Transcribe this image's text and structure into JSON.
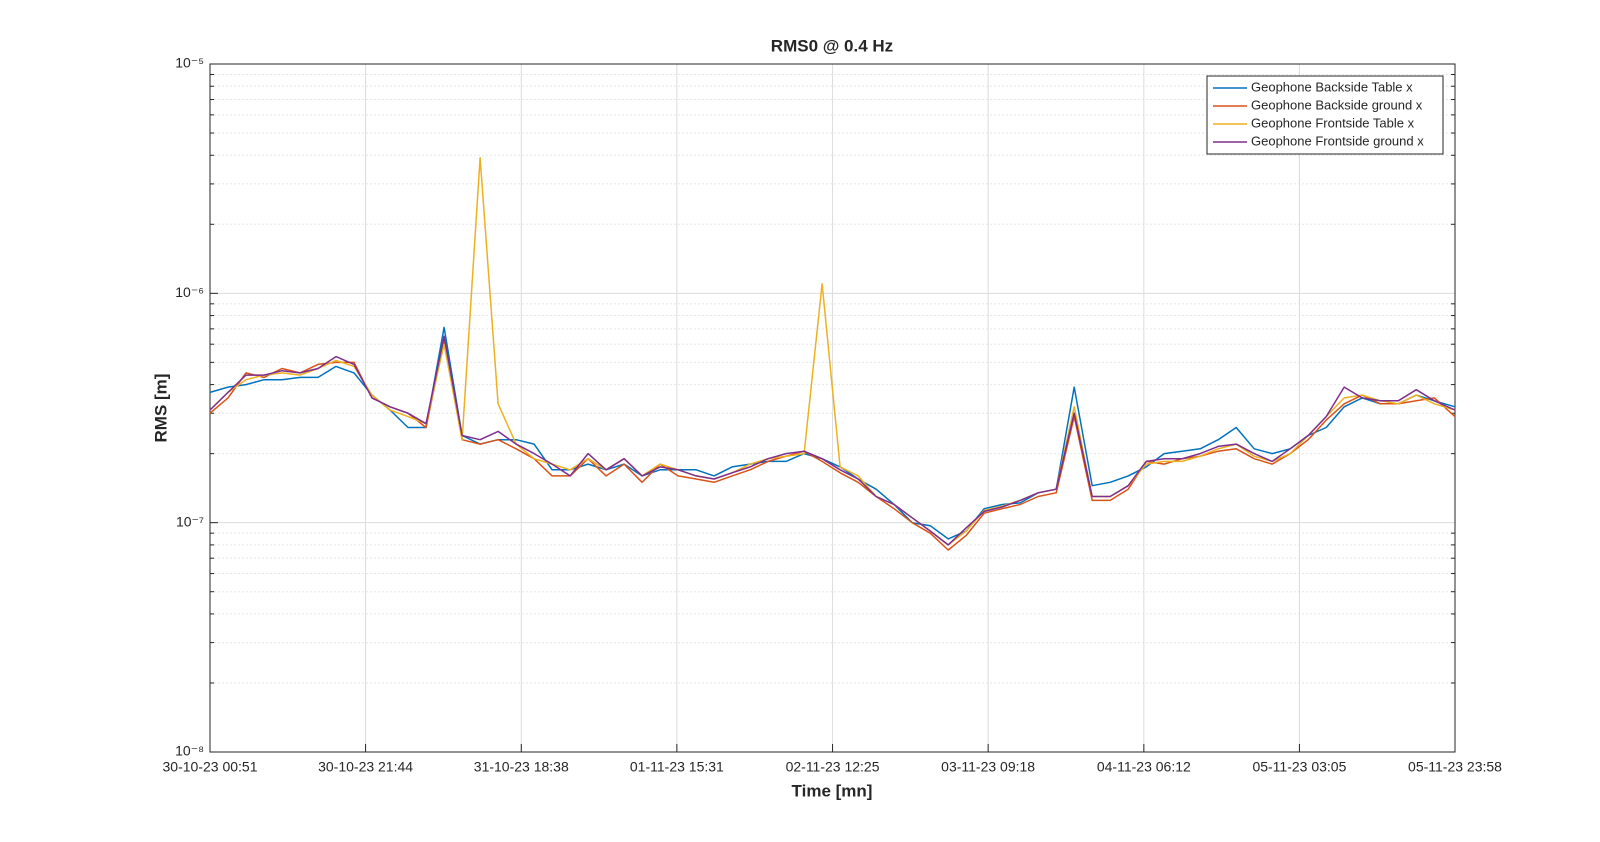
{
  "chart_data": {
    "type": "line",
    "title": "RMS0 @ 0.4 Hz",
    "x_label": "Time [mn]",
    "y_label": "RMS [m]",
    "log_y": true,
    "grid": true,
    "legend": "upper right",
    "xlim": [
      0,
      10027
    ],
    "xticks": [
      {
        "value": 0,
        "label": "30-10-23 00:51"
      },
      {
        "value": 1253,
        "label": "30-10-23 21:44"
      },
      {
        "value": 2507,
        "label": "31-10-23 18:38"
      },
      {
        "value": 3760,
        "label": "01-11-23 15:31"
      },
      {
        "value": 5014,
        "label": "02-11-23 12:25"
      },
      {
        "value": 6267,
        "label": "03-11-23 09:18"
      },
      {
        "value": 7521,
        "label": "04-11-23 06:12"
      },
      {
        "value": 8774,
        "label": "05-11-23 03:05"
      },
      {
        "value": 10027,
        "label": "05-11-23 23:58"
      }
    ],
    "ylim": [
      1e-08,
      1e-05
    ],
    "yticks": [
      {
        "value": 1e-08,
        "label": "10⁻⁸"
      },
      {
        "value": 1e-07,
        "label": "10⁻⁷"
      },
      {
        "value": 1e-06,
        "label": "10⁻⁶"
      },
      {
        "value": 1e-05,
        "label": "10⁻⁵"
      }
    ],
    "x": [
      0,
      145,
      290,
      435,
      580,
      725,
      870,
      1015,
      1160,
      1305,
      1450,
      1595,
      1740,
      1885,
      2030,
      2175,
      2320,
      2465,
      2610,
      2755,
      2900,
      3045,
      3190,
      3335,
      3480,
      3625,
      3770,
      3915,
      4060,
      4205,
      4350,
      4495,
      4640,
      4785,
      4930,
      5075,
      5220,
      5365,
      5510,
      5655,
      5800,
      5945,
      6090,
      6235,
      6380,
      6525,
      6670,
      6815,
      6960,
      7105,
      7250,
      7395,
      7540,
      7685,
      7830,
      7975,
      8120,
      8265,
      8410,
      8555,
      8700,
      8845,
      8990,
      9135,
      9280,
      9425,
      9570,
      9715,
      9860,
      10027
    ],
    "series": [
      {
        "name": "Geophone Backside Table x",
        "color": "#0072BD",
        "values": [
          3.7e-07,
          3.9e-07,
          4e-07,
          4.2e-07,
          4.2e-07,
          4.3e-07,
          4.3e-07,
          4.8e-07,
          4.5e-07,
          3.6e-07,
          3.1e-07,
          2.6e-07,
          2.6e-07,
          7.1e-07,
          2.4e-07,
          2.2e-07,
          2.3e-07,
          2.3e-07,
          2.2e-07,
          1.7e-07,
          1.7e-07,
          1.8e-07,
          1.7e-07,
          1.8e-07,
          1.6e-07,
          1.7e-07,
          1.7e-07,
          1.7e-07,
          1.6e-07,
          1.75e-07,
          1.8e-07,
          1.85e-07,
          1.85e-07,
          2e-07,
          1.9e-07,
          1.75e-07,
          1.55e-07,
          1.4e-07,
          1.2e-07,
          1e-07,
          9.7e-08,
          8.5e-08,
          9.2e-08,
          1.15e-07,
          1.2e-07,
          1.22e-07,
          1.35e-07,
          1.4e-07,
          3.9e-07,
          1.45e-07,
          1.5e-07,
          1.6e-07,
          1.75e-07,
          2e-07,
          2.05e-07,
          2.1e-07,
          2.3e-07,
          2.6e-07,
          2.1e-07,
          2e-07,
          2.1e-07,
          2.4e-07,
          2.6e-07,
          3.2e-07,
          3.5e-07,
          3.3e-07,
          3.3e-07,
          3.6e-07,
          3.4e-07,
          3.2e-07
        ]
      },
      {
        "name": "Geophone Backside ground x",
        "color": "#D95319",
        "values": [
          3e-07,
          3.5e-07,
          4.5e-07,
          4.3e-07,
          4.7e-07,
          4.5e-07,
          4.9e-07,
          5e-07,
          5e-07,
          3.5e-07,
          3.2e-07,
          3e-07,
          2.6e-07,
          6.2e-07,
          2.3e-07,
          2.2e-07,
          2.3e-07,
          2.1e-07,
          1.9e-07,
          1.6e-07,
          1.6e-07,
          1.9e-07,
          1.6e-07,
          1.8e-07,
          1.5e-07,
          1.8e-07,
          1.6e-07,
          1.55e-07,
          1.5e-07,
          1.6e-07,
          1.7e-07,
          1.85e-07,
          1.95e-07,
          2.05e-07,
          1.85e-07,
          1.65e-07,
          1.5e-07,
          1.3e-07,
          1.15e-07,
          1e-07,
          9e-08,
          7.6e-08,
          8.8e-08,
          1.1e-07,
          1.15e-07,
          1.2e-07,
          1.3e-07,
          1.35e-07,
          2.9e-07,
          1.25e-07,
          1.25e-07,
          1.4e-07,
          1.85e-07,
          1.8e-07,
          1.9e-07,
          1.95e-07,
          2.05e-07,
          2.1e-07,
          1.9e-07,
          1.8e-07,
          2e-07,
          2.3e-07,
          2.8e-07,
          3.3e-07,
          3.6e-07,
          3.3e-07,
          3.3e-07,
          3.4e-07,
          3.5e-07,
          2.9e-07
        ]
      },
      {
        "name": "Geophone Frontside Table x",
        "color": "#EDB120",
        "values": [
          3.1e-07,
          3.7e-07,
          4.2e-07,
          4.4e-07,
          4.5e-07,
          4.4e-07,
          4.7e-07,
          5.1e-07,
          4.8e-07,
          3.6e-07,
          3.1e-07,
          2.9e-07,
          2.7e-07,
          6e-07,
          2.3e-07,
          3.9e-06,
          3.3e-07,
          2.2e-07,
          1.9e-07,
          1.8e-07,
          1.7e-07,
          1.9e-07,
          1.7e-07,
          1.9e-07,
          1.6e-07,
          1.8e-07,
          1.7e-07,
          1.6e-07,
          1.55e-07,
          1.65e-07,
          1.8e-07,
          1.9e-07,
          1.95e-07,
          2e-07,
          1.1e-06,
          1.75e-07,
          1.6e-07,
          1.3e-07,
          1.2e-07,
          1.05e-07,
          9.2e-08,
          8e-08,
          9.2e-08,
          1.13e-07,
          1.18e-07,
          1.25e-07,
          1.35e-07,
          1.4e-07,
          3.2e-07,
          1.3e-07,
          1.3e-07,
          1.45e-07,
          1.8e-07,
          1.85e-07,
          1.85e-07,
          1.95e-07,
          2.1e-07,
          2.2e-07,
          1.95e-07,
          1.85e-07,
          2e-07,
          2.4e-07,
          2.9e-07,
          3.5e-07,
          3.6e-07,
          3.4e-07,
          3.3e-07,
          3.6e-07,
          3.3e-07,
          3.1e-07
        ]
      },
      {
        "name": "Geophone Frontside ground x",
        "color": "#7E2F8E",
        "values": [
          3.1e-07,
          3.7e-07,
          4.4e-07,
          4.4e-07,
          4.6e-07,
          4.5e-07,
          4.7e-07,
          5.3e-07,
          4.9e-07,
          3.5e-07,
          3.2e-07,
          3e-07,
          2.7e-07,
          6.5e-07,
          2.4e-07,
          2.3e-07,
          2.5e-07,
          2.2e-07,
          2e-07,
          1.8e-07,
          1.6e-07,
          2e-07,
          1.7e-07,
          1.9e-07,
          1.6e-07,
          1.75e-07,
          1.7e-07,
          1.6e-07,
          1.55e-07,
          1.65e-07,
          1.75e-07,
          1.9e-07,
          2e-07,
          2.05e-07,
          1.9e-07,
          1.7e-07,
          1.55e-07,
          1.3e-07,
          1.2e-07,
          1.05e-07,
          9.2e-08,
          8e-08,
          9.5e-08,
          1.12e-07,
          1.17e-07,
          1.25e-07,
          1.35e-07,
          1.4e-07,
          3e-07,
          1.3e-07,
          1.3e-07,
          1.45e-07,
          1.85e-07,
          1.9e-07,
          1.9e-07,
          2e-07,
          2.15e-07,
          2.2e-07,
          2e-07,
          1.85e-07,
          2.1e-07,
          2.4e-07,
          2.9e-07,
          3.9e-07,
          3.5e-07,
          3.4e-07,
          3.4e-07,
          3.8e-07,
          3.4e-07,
          3.1e-07
        ]
      }
    ]
  }
}
